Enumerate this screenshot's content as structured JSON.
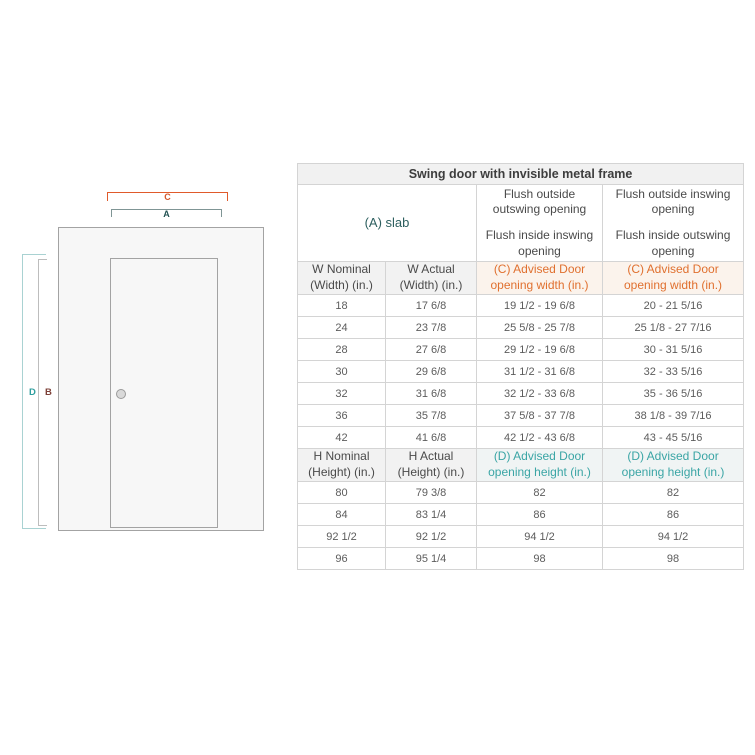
{
  "diagram": {
    "dim_c": "C",
    "dim_a": "A",
    "dim_d": "D",
    "dim_b": "B"
  },
  "colors": {
    "accent_orange": "#d4562a",
    "accent_teal": "#2e9e9e",
    "accent_dark_teal": "#2d5f5f",
    "accent_brown": "#7d4038"
  },
  "table": {
    "title": "Swing door with invisible metal frame",
    "slab_label": "(A) slab",
    "opening_cols": [
      {
        "top": "Flush outside outswing opening",
        "bottom": "Flush inside inswing opening"
      },
      {
        "top": "Flush outside inswing opening",
        "bottom": "Flush inside outswing opening"
      }
    ],
    "width_section": {
      "headers": [
        {
          "l1": "W Nominal",
          "l2": "(Width) (in.)"
        },
        {
          "l1": "W Actual",
          "l2": "(Width) (in.)"
        },
        {
          "l1": "(C) Advised Door",
          "l2": "opening width (in.)"
        },
        {
          "l1": "(C) Advised Door",
          "l2": "opening width (in.)"
        }
      ],
      "rows": [
        [
          "18",
          "17 6/8",
          "19 1/2 - 19 6/8",
          "20 - 21 5/16"
        ],
        [
          "24",
          "23 7/8",
          "25 5/8 - 25 7/8",
          "25 1/8 - 27 7/16"
        ],
        [
          "28",
          "27 6/8",
          "29 1/2 - 19 6/8",
          "30 - 31 5/16"
        ],
        [
          "30",
          "29 6/8",
          "31 1/2 - 31 6/8",
          "32 - 33 5/16"
        ],
        [
          "32",
          "31 6/8",
          "32 1/2 - 33 6/8",
          "35 - 36 5/16"
        ],
        [
          "36",
          "35 7/8",
          "37 5/8 - 37 7/8",
          "38 1/8 - 39 7/16"
        ],
        [
          "42",
          "41 6/8",
          "42 1/2 - 43 6/8",
          "43 - 45 5/16"
        ]
      ]
    },
    "height_section": {
      "headers": [
        {
          "l1": "H Nominal",
          "l2": "(Height) (in.)"
        },
        {
          "l1": "H Actual",
          "l2": "(Height) (in.)"
        },
        {
          "l1": "(D) Advised Door",
          "l2": "opening height (in.)"
        },
        {
          "l1": "(D) Advised Door",
          "l2": "opening height (in.)"
        }
      ],
      "rows": [
        [
          "80",
          "79 3/8",
          "82",
          "82"
        ],
        [
          "84",
          "83 1/4",
          "86",
          "86"
        ],
        [
          "92 1/2",
          "92 1/2",
          "94 1/2",
          "94 1/2"
        ],
        [
          "96",
          "95 1/4",
          "98",
          "98"
        ]
      ]
    }
  }
}
